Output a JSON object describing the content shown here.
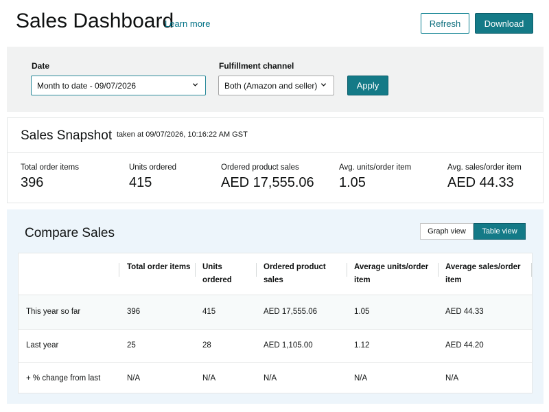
{
  "header": {
    "title": "Sales Dashboard",
    "learn_more": "Learn more",
    "refresh_label": "Refresh",
    "download_label": "Download"
  },
  "filters": {
    "date_label": "Date",
    "date_value": "Month to date - 09/07/2026",
    "channel_label": "Fulfillment channel",
    "channel_value": "Both (Amazon and seller)",
    "apply_label": "Apply"
  },
  "snapshot": {
    "title": "Sales Snapshot",
    "timestamp": "taken at 09/07/2026, 10:16:22 AM GST",
    "metrics": [
      {
        "label": "Total order items",
        "value": "396"
      },
      {
        "label": "Units ordered",
        "value": "415"
      },
      {
        "label": "Ordered product sales",
        "value": "AED 17,555.06"
      },
      {
        "label": "Avg. units/order item",
        "value": "1.05"
      },
      {
        "label": "Avg. sales/order item",
        "value": "AED 44.33"
      }
    ]
  },
  "compare": {
    "title": "Compare Sales",
    "graph_view_label": "Graph view",
    "table_view_label": "Table view",
    "columns": [
      "",
      "Total order items",
      "Units ordered",
      "Ordered product sales",
      "Average units/order item",
      "Average sales/order item"
    ],
    "rows": [
      [
        "This year so far",
        "396",
        "415",
        "AED 17,555.06",
        "1.05",
        "AED 44.33"
      ],
      [
        "Last year",
        "25",
        "28",
        "AED 1,105.00",
        "1.12",
        "AED 44.20"
      ],
      [
        "+ % change from last",
        "N/A",
        "N/A",
        "N/A",
        "N/A",
        "N/A"
      ]
    ]
  },
  "colors": {
    "accent": "#147a87",
    "link": "#007185",
    "filter_background": "#f1f2f2",
    "compare_background": "#edf5fb"
  }
}
